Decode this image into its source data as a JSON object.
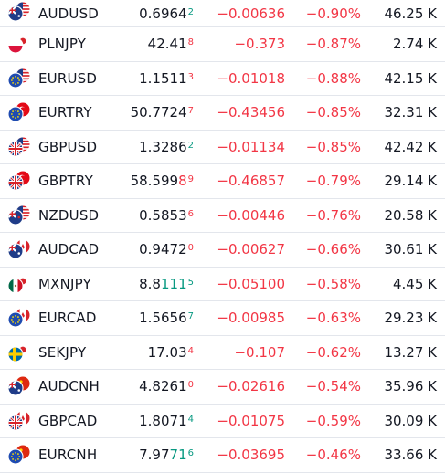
{
  "rows": [
    {
      "symbol": "AUDUSD",
      "price_main": "0.6964",
      "price_hl": "",
      "price_sub": "2",
      "sub_dir": "up",
      "change": "−0.00636",
      "change_pct": "−0.90%",
      "volume": "46.25 K",
      "flags": [
        "au-flag",
        "us-flag"
      ]
    },
    {
      "symbol": "PLNJPY",
      "price_main": "42.41",
      "price_hl": "",
      "price_sub": "8",
      "sub_dir": "dn",
      "change": "−0.373",
      "change_pct": "−0.87%",
      "volume": "2.74 K",
      "flags": [
        "pl-flag",
        "jp-flag"
      ]
    },
    {
      "symbol": "EURUSD",
      "price_main": "1.1511",
      "price_hl": "",
      "price_sub": "3",
      "sub_dir": "dn",
      "change": "−0.01018",
      "change_pct": "−0.88%",
      "volume": "42.15 K",
      "flags": [
        "eu-flag",
        "us-flag"
      ]
    },
    {
      "symbol": "EURTRY",
      "price_main": "50.7724",
      "price_hl": "",
      "price_sub": "7",
      "sub_dir": "dn",
      "change": "−0.43456",
      "change_pct": "−0.85%",
      "volume": "32.31 K",
      "flags": [
        "eu-flag",
        "tr-flag"
      ]
    },
    {
      "symbol": "GBPUSD",
      "price_main": "1.3286",
      "price_hl": "",
      "price_sub": "2",
      "sub_dir": "up",
      "change": "−0.01134",
      "change_pct": "−0.85%",
      "volume": "42.42 K",
      "flags": [
        "gb-flag",
        "us-flag"
      ]
    },
    {
      "symbol": "GBPTRY",
      "price_main": "58.599",
      "price_hl": "8",
      "price_sub": "9",
      "sub_dir": "dn",
      "change": "−0.46857",
      "change_pct": "−0.79%",
      "volume": "29.14 K",
      "flags": [
        "gb-flag",
        "tr-flag"
      ]
    },
    {
      "symbol": "NZDUSD",
      "price_main": "0.5853",
      "price_hl": "",
      "price_sub": "6",
      "sub_dir": "dn",
      "change": "−0.00446",
      "change_pct": "−0.76%",
      "volume": "20.58 K",
      "flags": [
        "nz-flag",
        "us-flag"
      ]
    },
    {
      "symbol": "AUDCAD",
      "price_main": "0.9472",
      "price_hl": "",
      "price_sub": "0",
      "sub_dir": "dn",
      "change": "−0.00627",
      "change_pct": "−0.66%",
      "volume": "30.61 K",
      "flags": [
        "au-flag",
        "ca-flag"
      ]
    },
    {
      "symbol": "MXNJPY",
      "price_main": "8.8",
      "price_hl": "111",
      "price_sub": "5",
      "sub_dir": "up",
      "change": "−0.05100",
      "change_pct": "−0.58%",
      "volume": "4.45 K",
      "flags": [
        "mx-flag",
        "jp-flag"
      ]
    },
    {
      "symbol": "EURCAD",
      "price_main": "1.5656",
      "price_hl": "",
      "price_sub": "7",
      "sub_dir": "up",
      "change": "−0.00985",
      "change_pct": "−0.63%",
      "volume": "29.23 K",
      "flags": [
        "eu-flag",
        "ca-flag"
      ]
    },
    {
      "symbol": "SEKJPY",
      "price_main": "17.03",
      "price_hl": "",
      "price_sub": "4",
      "sub_dir": "dn",
      "change": "−0.107",
      "change_pct": "−0.62%",
      "volume": "13.27 K",
      "flags": [
        "se-flag",
        "jp-flag"
      ]
    },
    {
      "symbol": "AUDCNH",
      "price_main": "4.8261",
      "price_hl": "",
      "price_sub": "0",
      "sub_dir": "dn",
      "change": "−0.02616",
      "change_pct": "−0.54%",
      "volume": "35.96 K",
      "flags": [
        "au-flag",
        "cn-flag"
      ]
    },
    {
      "symbol": "GBPCAD",
      "price_main": "1.8071",
      "price_hl": "",
      "price_sub": "4",
      "sub_dir": "up",
      "change": "−0.01075",
      "change_pct": "−0.59%",
      "volume": "30.09 K",
      "flags": [
        "gb-flag",
        "ca-flag"
      ]
    },
    {
      "symbol": "EURCNH",
      "price_main": "7.97",
      "price_hl": "71",
      "price_sub": "6",
      "sub_dir": "up",
      "change": "−0.03695",
      "change_pct": "−0.46%",
      "volume": "33.66 K",
      "flags": [
        "eu-flag",
        "cn-flag"
      ]
    }
  ],
  "colors": {
    "up": "#089981",
    "down": "#f23645",
    "text": "#131722",
    "divider": "#e3e6ec"
  }
}
